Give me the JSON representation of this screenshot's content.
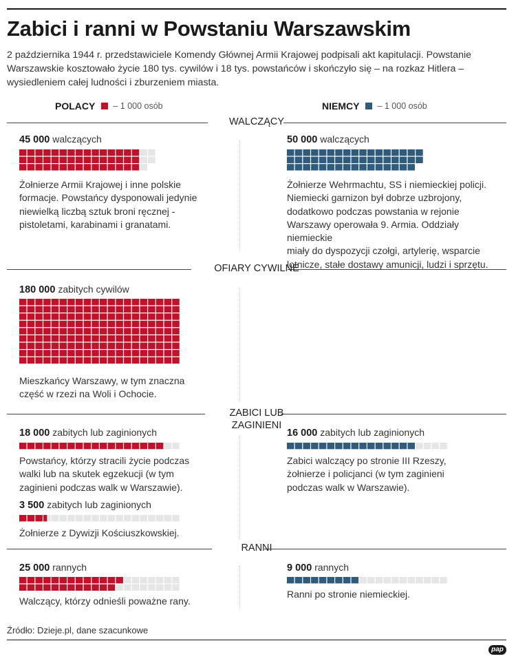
{
  "title": "Zabici i ranni w Powstaniu Warszawskim",
  "intro": "2 października 1944 r. przedstawiciele Komendy Głównej Armii Krajowej podpisali akt kapitulacji. Powstanie Warszawskie kosztowało życie 180 tys. cywilów i 18 tys. powstańców i skończyło się – na rozkaz Hitlera – wysiedleniem całej ludności i zburzeniem miasta.",
  "colors": {
    "polish": "#c0132b",
    "german": "#2f5b7c",
    "empty": "#e6e6e6"
  },
  "legend": {
    "polish": {
      "label": "POLACY",
      "unit": "– 1 000 osób"
    },
    "german": {
      "label": "NIEMCY",
      "unit": "– 1 000 osób"
    }
  },
  "sections": {
    "fighters": "WALCZĄCY",
    "civilians": "OFIARY CYWILNE",
    "killed_line1": "ZABICI LUB",
    "killed_line2": "ZAGINIENI",
    "wounded": "RANNI"
  },
  "blocks": {
    "pl_fighters": {
      "num": "45 000",
      "label": "walczących",
      "value": 45,
      "total": 50,
      "side": "polish",
      "desc": [
        "Żołnierze Armii Krajowej i inne polskie",
        "formacje. Powstańcy dysponowali jedynie",
        "niewielką liczbą sztuk broni ręcznej -",
        "pistoletami, karabinami i granatami."
      ]
    },
    "de_fighters": {
      "num": "50 000",
      "label": "walczących",
      "value": 50,
      "total": 50,
      "side": "german",
      "desc": [
        "Żołnierze Wehrmachtu, SS i niemieckiej policji.",
        "Niemiecki garnizon był dobrze uzbrojony,",
        "dodatkowo podczas powstania w rejonie",
        "Warszawy operowała 9. Armia. Oddziały niemieckie",
        "miały do dyspozycji czołgi, artylerię, wsparcie",
        "lotnicze, stałe dostawy amunicji, ludzi i sprzętu."
      ]
    },
    "pl_civilians": {
      "num": "180 000",
      "label": "zabitych cywilów",
      "value": 180,
      "total": 180,
      "side": "polish",
      "desc": [
        "Mieszkańcy Warszawy, w tym znaczna",
        "część w rzezi na Woli i Ochocie."
      ]
    },
    "pl_killed": {
      "num": "18 000",
      "label": "zabitych lub zaginionych",
      "value": 18,
      "total": 20,
      "side": "polish",
      "desc": [
        "Powstańcy, którzy stracili życie podczas",
        "walki lub na skutek egzekucji (w tym",
        "zaginieni podczas walk w Warszawie)."
      ]
    },
    "pl_killed_lwp": {
      "num": "3 500",
      "label": "zabitych lub zaginionych",
      "value": 3.5,
      "total": 20,
      "side": "polish",
      "desc": [
        "Żołnierze z Dywizji Kościuszkowskiej."
      ]
    },
    "de_killed": {
      "num": "16 000",
      "label": "zabitych lub zaginionych",
      "value": 16,
      "total": 20,
      "side": "german",
      "desc": [
        "Zabici walczący po stronie III Rzeszy,",
        "żołnierze i policjanci (w tym zaginieni",
        "podczas walk w Warszawie)."
      ]
    },
    "pl_wounded": {
      "num": "25 000",
      "label": "rannych",
      "value": 25,
      "total": 40,
      "side": "polish",
      "desc": [
        "Walczący, którzy odnieśli poważne rany."
      ]
    },
    "de_wounded": {
      "num": "9 000",
      "label": "rannych",
      "value": 9,
      "total": 20,
      "side": "german",
      "desc": [
        "Ranni po stronie niemieckiej."
      ]
    }
  },
  "source": "Źródło: Dzieje.pl, dane szacunkowe",
  "logo": "pap"
}
